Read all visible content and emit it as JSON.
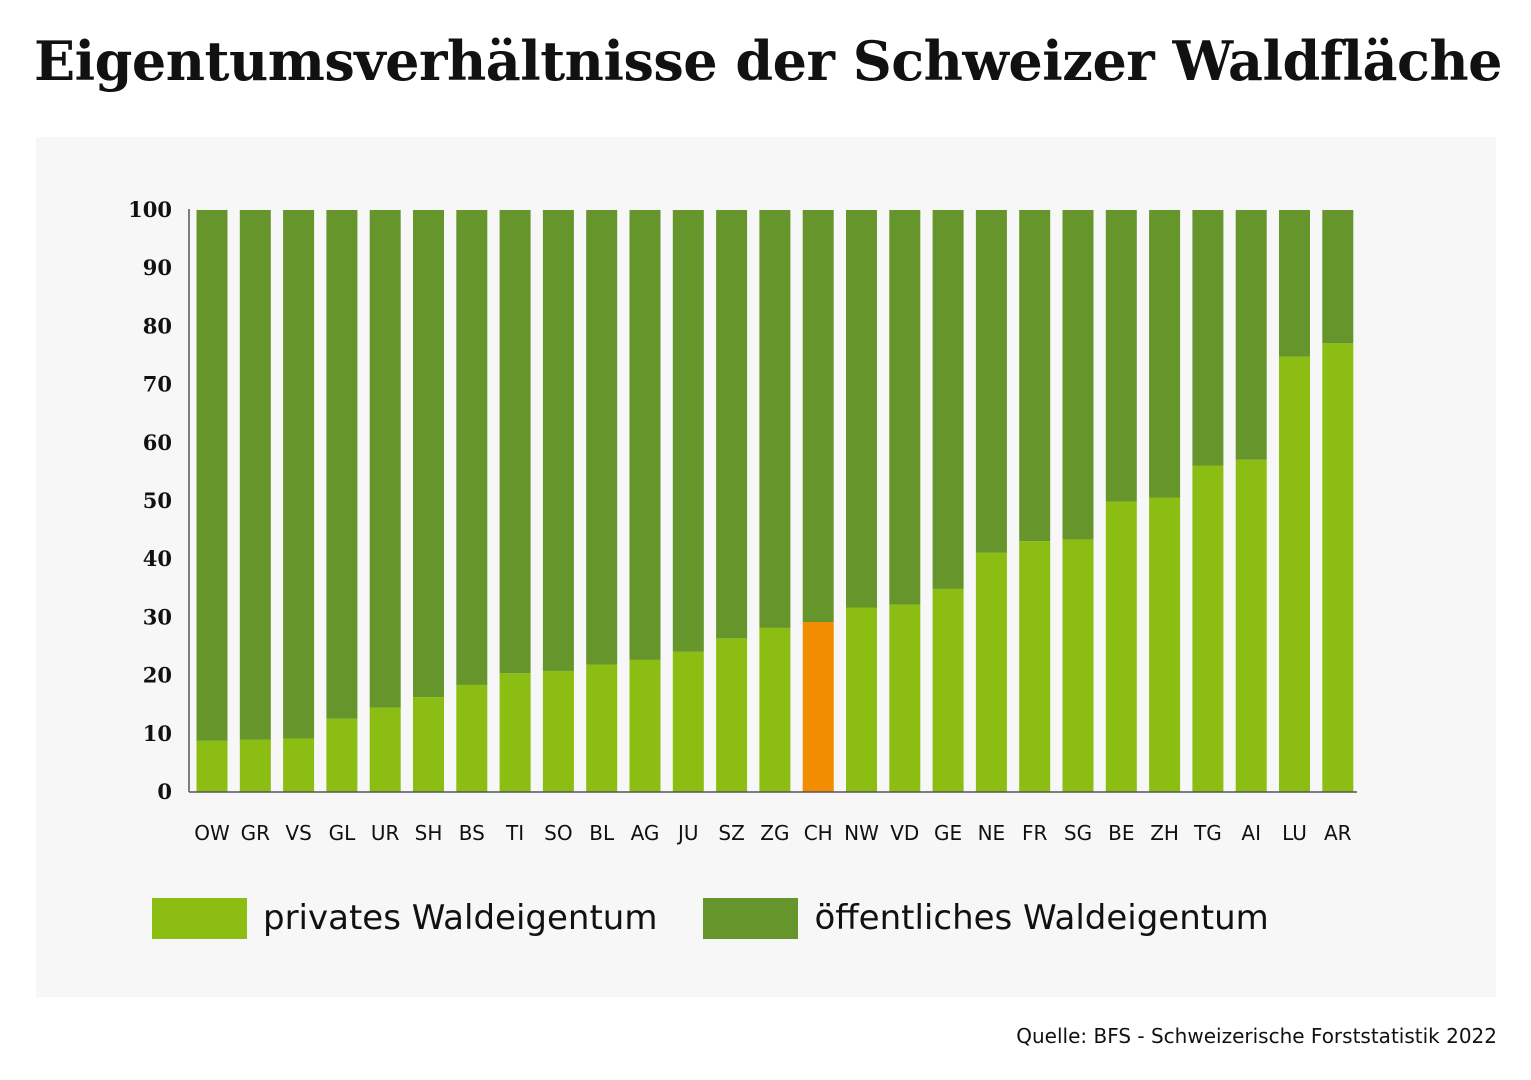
{
  "title": "Eigentumsverhältnisse der Schweizer Waldfläche",
  "source": "Quelle: BFS - Schweizerische Forststatistik 2022",
  "colors": {
    "private": "#8bbd12",
    "public": "#65952b",
    "highlight": "#f28c00",
    "panel": "#f7f7f7"
  },
  "legend": {
    "private_label": "privates Waldeigentum",
    "public_label": "öffentliches Waldeigentum"
  },
  "chart_data": {
    "type": "bar",
    "stacked": true,
    "categories": [
      "OW",
      "GR",
      "VS",
      "GL",
      "UR",
      "SH",
      "BS",
      "TI",
      "SO",
      "BL",
      "AG",
      "JU",
      "SZ",
      "ZG",
      "CH",
      "NW",
      "VD",
      "GE",
      "NE",
      "FR",
      "SG",
      "BE",
      "ZH",
      "TG",
      "AI",
      "LU",
      "AR"
    ],
    "series": [
      {
        "name": "privates Waldeigentum",
        "values": [
          8.8,
          9.0,
          9.2,
          12.6,
          14.5,
          16.3,
          18.4,
          20.4,
          20.8,
          21.9,
          22.7,
          24.1,
          26.4,
          28.2,
          29.2,
          31.7,
          32.2,
          34.9,
          41.1,
          43.1,
          43.4,
          49.9,
          50.6,
          56.1,
          57.1,
          74.8,
          77.1
        ]
      },
      {
        "name": "öffentliches Waldeigentum",
        "values": [
          91.2,
          91.0,
          90.8,
          87.4,
          85.5,
          83.7,
          81.6,
          79.6,
          79.2,
          78.1,
          77.3,
          75.9,
          73.6,
          71.8,
          70.8,
          68.3,
          67.8,
          65.1,
          58.9,
          56.9,
          56.6,
          50.1,
          49.4,
          43.9,
          42.9,
          25.2,
          22.9
        ]
      }
    ],
    "highlight_category": "CH",
    "yticks": [
      0,
      10,
      20,
      30,
      40,
      50,
      60,
      70,
      80,
      90,
      100
    ],
    "ylim": [
      0,
      100
    ],
    "grid": false,
    "legend_position": "bottom-left"
  }
}
